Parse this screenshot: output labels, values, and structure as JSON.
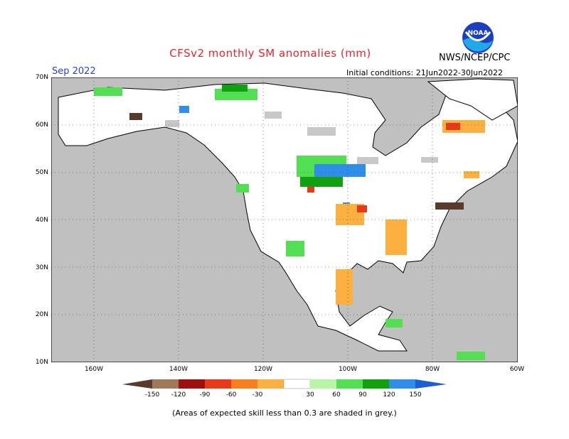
{
  "header": {
    "title": "CFSv2 monthly SM anomalies (mm)",
    "agency": "NWS/NCEP/CPC",
    "logo_text": "NOAA",
    "forecast_month": "Sep 2022",
    "initial_conditions": "Initial conditions: 21Jun2022-30Jun2022"
  },
  "axes": {
    "lat_labels": [
      "70N",
      "60N",
      "50N",
      "40N",
      "30N",
      "20N",
      "10N"
    ],
    "lon_labels": [
      "160W",
      "140W",
      "120W",
      "100W",
      "80W",
      "60W"
    ]
  },
  "colorbar": {
    "tick_labels": [
      "-150",
      "-120",
      "-90",
      "-60",
      "-30",
      "30",
      "60",
      "90",
      "120",
      "150"
    ],
    "colors": [
      "#5a3a2a",
      "#a0785a",
      "#9e0f0f",
      "#e8391a",
      "#f77f1e",
      "#fbb040",
      "#ffffff",
      "#b8f5a8",
      "#52e052",
      "#10a010",
      "#2f8fe8",
      "#1a5fd8"
    ]
  },
  "colors": {
    "ocean": "#c0c0c0",
    "land": "#ffffff",
    "low_skill": "#c8c8c8",
    "title": "#e8242c",
    "month": "#2a3fd0"
  },
  "footnote": "(Areas of expected skill less than 0.3 are shaded in grey.)"
}
